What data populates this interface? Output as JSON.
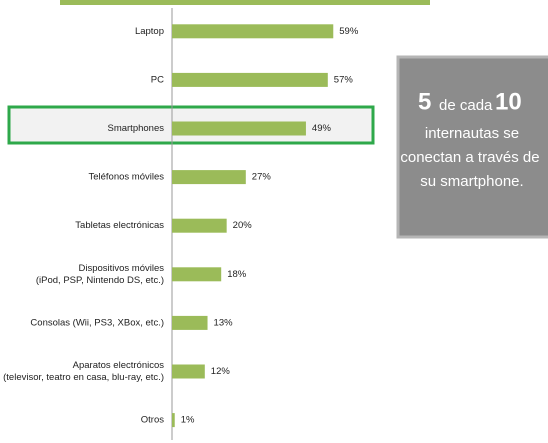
{
  "chart_data": {
    "type": "hbar",
    "categories": [
      [
        "Laptop"
      ],
      [
        "PC"
      ],
      [
        "Smartphones"
      ],
      [
        "Teléfonos móviles"
      ],
      [
        "Tabletas electrónicas"
      ],
      [
        "Dispositivos móviles",
        "(iPod, PSP, Nintendo DS, etc.)"
      ],
      [
        "Consolas (Wii, PS3, XBox, etc.)"
      ],
      [
        "Aparatos electrónicos",
        "(televisor, teatro en casa, blu-ray, etc.)"
      ],
      [
        "Otros"
      ]
    ],
    "values": [
      59,
      57,
      49,
      27,
      20,
      18,
      13,
      12,
      1
    ],
    "value_labels": [
      "59%",
      "57%",
      "49%",
      "27%",
      "20%",
      "18%",
      "13%",
      "12%",
      "1%"
    ],
    "color": "#9bbb59",
    "xlim": [
      0,
      60
    ],
    "annotation": {
      "number": "5",
      "middle": "de cada",
      "total": "10",
      "lines": [
        "internautas se",
        "conectan a través de",
        "su smartphone."
      ]
    }
  }
}
